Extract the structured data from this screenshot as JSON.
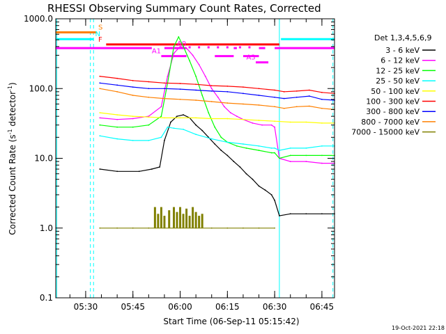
{
  "chart_data": {
    "type": "line",
    "title": "RHESSI Observing Summary Count Rates, Corrected",
    "xlabel": "Start Time (06-Sep-11 05:15:42)",
    "ylabel_main": "Corrected Count Rate (s",
    "ylabel_sup1": "-1",
    "ylabel_mid": " detector",
    "ylabel_sup2": "-1",
    "ylabel_end": ")",
    "yscale": "log",
    "ylim": [
      0.1,
      1000
    ],
    "xlim_minutes": [
      5.5,
      94
    ],
    "x_ticks": [
      {
        "label": "05:30",
        "minute": 15
      },
      {
        "label": "05:45",
        "minute": 30
      },
      {
        "label": "06:00",
        "minute": 45
      },
      {
        "label": "06:15",
        "minute": 60
      },
      {
        "label": "06:30",
        "minute": 75
      },
      {
        "label": "06:45",
        "minute": 90
      }
    ],
    "y_ticks": [
      {
        "label": "1000.0",
        "value": 1000
      },
      {
        "label": "100.0",
        "value": 100
      },
      {
        "label": "10.0",
        "value": 10
      },
      {
        "label": "1.0",
        "value": 1
      },
      {
        "label": "0.1",
        "value": 0.1
      }
    ],
    "legend_title": "Det 1,3,4,5,6,9",
    "series": [
      {
        "name": "3 - 6 keV",
        "color": "#000000",
        "points": [
          [
            19.5,
            7
          ],
          [
            25,
            6.5
          ],
          [
            32,
            6.5
          ],
          [
            36,
            7
          ],
          [
            38.5,
            7.5
          ],
          [
            40,
            18
          ],
          [
            42,
            33
          ],
          [
            44,
            40
          ],
          [
            46,
            42
          ],
          [
            48,
            38
          ],
          [
            50,
            30
          ],
          [
            52,
            25
          ],
          [
            54,
            20
          ],
          [
            56,
            16
          ],
          [
            58,
            13
          ],
          [
            60,
            11
          ],
          [
            62,
            9
          ],
          [
            64,
            7.5
          ],
          [
            66,
            6
          ],
          [
            68,
            5
          ],
          [
            70,
            4
          ],
          [
            72,
            3.5
          ],
          [
            74,
            3
          ],
          [
            75,
            2.5
          ],
          [
            76.5,
            1.5
          ],
          [
            80,
            1.6
          ],
          [
            85,
            1.6
          ],
          [
            90,
            1.6
          ],
          [
            94,
            1.6
          ]
        ]
      },
      {
        "name": "6 - 12 keV",
        "color": "#ff00ff",
        "points": [
          [
            19.5,
            38
          ],
          [
            25,
            36
          ],
          [
            30,
            37
          ],
          [
            35,
            40
          ],
          [
            39,
            55
          ],
          [
            41,
            150
          ],
          [
            43,
            320
          ],
          [
            45,
            400
          ],
          [
            47,
            380
          ],
          [
            49,
            300
          ],
          [
            51,
            220
          ],
          [
            53,
            150
          ],
          [
            55,
            100
          ],
          [
            57,
            75
          ],
          [
            59,
            55
          ],
          [
            61,
            45
          ],
          [
            63,
            40
          ],
          [
            65,
            36
          ],
          [
            68,
            32
          ],
          [
            71,
            30
          ],
          [
            74,
            30
          ],
          [
            75,
            28
          ],
          [
            76.5,
            10
          ],
          [
            80,
            9
          ],
          [
            85,
            9
          ],
          [
            90,
            8.5
          ],
          [
            94,
            8.5
          ]
        ]
      },
      {
        "name": "12 - 25 keV",
        "color": "#00ff00",
        "points": [
          [
            19.5,
            30
          ],
          [
            25,
            28
          ],
          [
            30,
            28
          ],
          [
            35,
            30
          ],
          [
            39,
            40
          ],
          [
            41,
            120
          ],
          [
            43,
            400
          ],
          [
            44.5,
            550
          ],
          [
            46,
            400
          ],
          [
            48,
            250
          ],
          [
            50,
            150
          ],
          [
            52,
            80
          ],
          [
            54,
            45
          ],
          [
            56,
            28
          ],
          [
            58,
            20
          ],
          [
            60,
            17
          ],
          [
            63,
            15
          ],
          [
            66,
            14
          ],
          [
            70,
            13
          ],
          [
            74,
            12
          ],
          [
            75,
            12
          ],
          [
            76.5,
            10
          ],
          [
            80,
            11
          ],
          [
            85,
            11
          ],
          [
            90,
            11
          ],
          [
            94,
            11
          ]
        ]
      },
      {
        "name": "25 - 50 keV",
        "color": "#00ffff",
        "points": [
          [
            19.5,
            21
          ],
          [
            25,
            19
          ],
          [
            30,
            18
          ],
          [
            35,
            18
          ],
          [
            39,
            20
          ],
          [
            41,
            28
          ],
          [
            43,
            27
          ],
          [
            46,
            26
          ],
          [
            50,
            22
          ],
          [
            55,
            19
          ],
          [
            60,
            17
          ],
          [
            65,
            16
          ],
          [
            70,
            15
          ],
          [
            74,
            14
          ],
          [
            75,
            14
          ],
          [
            76.5,
            13
          ],
          [
            80,
            14
          ],
          [
            85,
            14
          ],
          [
            90,
            15
          ],
          [
            94,
            15
          ]
        ]
      },
      {
        "name": "50 - 100 keV",
        "color": "#ffff00",
        "points": [
          [
            19.5,
            45
          ],
          [
            25,
            42
          ],
          [
            30,
            40
          ],
          [
            35,
            39
          ],
          [
            40,
            38
          ],
          [
            45,
            38
          ],
          [
            50,
            38
          ],
          [
            55,
            37
          ],
          [
            60,
            37
          ],
          [
            65,
            36
          ],
          [
            70,
            35
          ],
          [
            75,
            34
          ],
          [
            80,
            33
          ],
          [
            85,
            33
          ],
          [
            90,
            32
          ],
          [
            94,
            32
          ]
        ]
      },
      {
        "name": "100 - 300 keV",
        "color": "#ff0000",
        "points": [
          [
            19.5,
            150
          ],
          [
            25,
            140
          ],
          [
            30,
            130
          ],
          [
            35,
            125
          ],
          [
            40,
            120
          ],
          [
            45,
            118
          ],
          [
            50,
            115
          ],
          [
            55,
            110
          ],
          [
            60,
            108
          ],
          [
            65,
            105
          ],
          [
            70,
            100
          ],
          [
            75,
            95
          ],
          [
            78,
            90
          ],
          [
            82,
            92
          ],
          [
            86,
            95
          ],
          [
            90,
            88
          ],
          [
            94,
            85
          ]
        ]
      },
      {
        "name": "300 - 800 keV",
        "color": "#0000ff",
        "points": [
          [
            19.5,
            120
          ],
          [
            25,
            112
          ],
          [
            30,
            105
          ],
          [
            35,
            100
          ],
          [
            40,
            100
          ],
          [
            45,
            98
          ],
          [
            50,
            95
          ],
          [
            55,
            92
          ],
          [
            60,
            90
          ],
          [
            65,
            85
          ],
          [
            70,
            80
          ],
          [
            75,
            75
          ],
          [
            78,
            72
          ],
          [
            82,
            75
          ],
          [
            86,
            78
          ],
          [
            90,
            70
          ],
          [
            94,
            68
          ]
        ]
      },
      {
        "name": "800 - 7000 keV",
        "color": "#ff8000",
        "points": [
          [
            19.5,
            100
          ],
          [
            25,
            90
          ],
          [
            30,
            80
          ],
          [
            35,
            75
          ],
          [
            40,
            72
          ],
          [
            45,
            70
          ],
          [
            50,
            68
          ],
          [
            55,
            65
          ],
          [
            60,
            62
          ],
          [
            65,
            60
          ],
          [
            70,
            58
          ],
          [
            75,
            55
          ],
          [
            78,
            52
          ],
          [
            82,
            55
          ],
          [
            86,
            56
          ],
          [
            90,
            52
          ],
          [
            94,
            50
          ]
        ]
      },
      {
        "name": "7000 - 15000 keV",
        "color": "#808000",
        "points": [
          [
            19.5,
            1
          ],
          [
            25,
            1
          ],
          [
            30,
            1
          ],
          [
            35,
            1
          ],
          [
            40,
            1
          ],
          [
            45,
            1
          ],
          [
            50,
            1
          ],
          [
            55,
            1
          ],
          [
            60,
            1
          ],
          [
            65,
            1
          ],
          [
            70,
            1
          ],
          [
            75,
            1
          ]
        ]
      }
    ],
    "bursts_7000": [
      [
        37,
        2
      ],
      [
        38,
        1.6
      ],
      [
        39,
        2
      ],
      [
        40,
        1.5
      ],
      [
        41.5,
        1.8
      ],
      [
        43,
        2
      ],
      [
        44,
        1.7
      ],
      [
        45,
        2
      ],
      [
        46,
        1.6
      ],
      [
        47,
        1.9
      ],
      [
        48,
        1.5
      ],
      [
        49,
        2
      ],
      [
        50,
        1.7
      ],
      [
        51,
        1.5
      ],
      [
        52,
        1.6
      ]
    ],
    "flag_bars": [
      {
        "label": "S",
        "color": "#ff8000",
        "label_minute": 19,
        "label_value": 700,
        "segments": [
          [
            5.5,
            18.5
          ]
        ]
      },
      {
        "label": "N",
        "color": "#00ffff",
        "label_minute": 18,
        "label_value": 560,
        "segments": [
          [
            5.5,
            17.5
          ],
          [
            77,
            94
          ]
        ]
      },
      {
        "label": "F",
        "color": "#ff0000",
        "label_minute": 19,
        "label_value": 470,
        "segments": [
          [
            21.5,
            76.5
          ]
        ]
      },
      {
        "label": "",
        "color": "#ff00ff",
        "label_minute": 0,
        "label_value": 0,
        "segments": [
          [
            5.5,
            36
          ],
          [
            40,
            47
          ],
          [
            62,
            63
          ],
          [
            70,
            72
          ],
          [
            75,
            94
          ]
        ]
      },
      {
        "label": "A1",
        "color": "#ff00ff",
        "label_minute": 36,
        "label_value": 320,
        "segments": [
          [
            39,
            47
          ],
          [
            56,
            62
          ],
          [
            65,
            70
          ]
        ]
      },
      {
        "label": "A3",
        "color": "#ff00ff",
        "label_minute": 66,
        "label_value": 260,
        "segments": [
          [
            69,
            73
          ]
        ]
      }
    ],
    "flag_dots": [
      {
        "color": "#ff00ff",
        "minutes": [
          48,
          51,
          54,
          57,
          60,
          64,
          67
        ],
        "value": 390
      }
    ],
    "vlines": [
      {
        "minute": 5.8,
        "style": "solid",
        "color": "#00ffff"
      },
      {
        "minute": 16.5,
        "style": "dashed",
        "color": "#00ffff"
      },
      {
        "minute": 17.5,
        "style": "dashed",
        "color": "#00ffff"
      },
      {
        "minute": 76.5,
        "style": "solid",
        "color": "#00ffff"
      },
      {
        "minute": 93.5,
        "style": "dashed",
        "color": "#00ffff"
      }
    ],
    "attenuator_labels": [
      {
        "text": "A0",
        "minute": 44,
        "value": 410
      }
    ],
    "grid": false,
    "legend_position": "right"
  },
  "footer": {
    "timestamp": "19-Oct-2021 22:18"
  }
}
